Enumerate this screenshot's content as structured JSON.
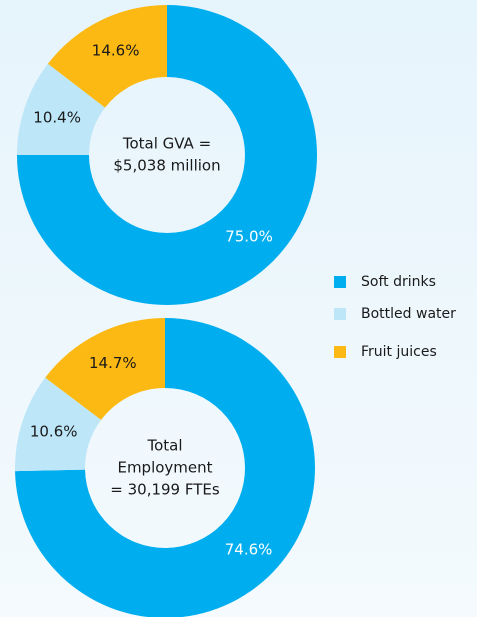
{
  "chart_data": [
    {
      "type": "pie",
      "center_text": [
        "Total GVA =",
        "$5,038 million"
      ],
      "values": [
        75.0,
        10.4,
        14.6
      ],
      "value_labels": [
        "75.0%",
        "10.4%",
        "14.6%"
      ],
      "colors": [
        "#00aeef",
        "#bde6f8",
        "#fdb913"
      ]
    },
    {
      "type": "pie",
      "center_text": [
        "Total",
        "Employment",
        "= 30,199 FTEs"
      ],
      "values": [
        74.6,
        10.6,
        14.7
      ],
      "value_labels": [
        "74.6%",
        "10.6%",
        "14.7%"
      ],
      "colors": [
        "#00aeef",
        "#bde6f8",
        "#fdb913"
      ]
    }
  ],
  "legend": {
    "labels": [
      "Soft drinks",
      "Bottled water",
      "Fruit juices"
    ],
    "colors": [
      "#00aeef",
      "#bde6f8",
      "#fdb913"
    ]
  }
}
